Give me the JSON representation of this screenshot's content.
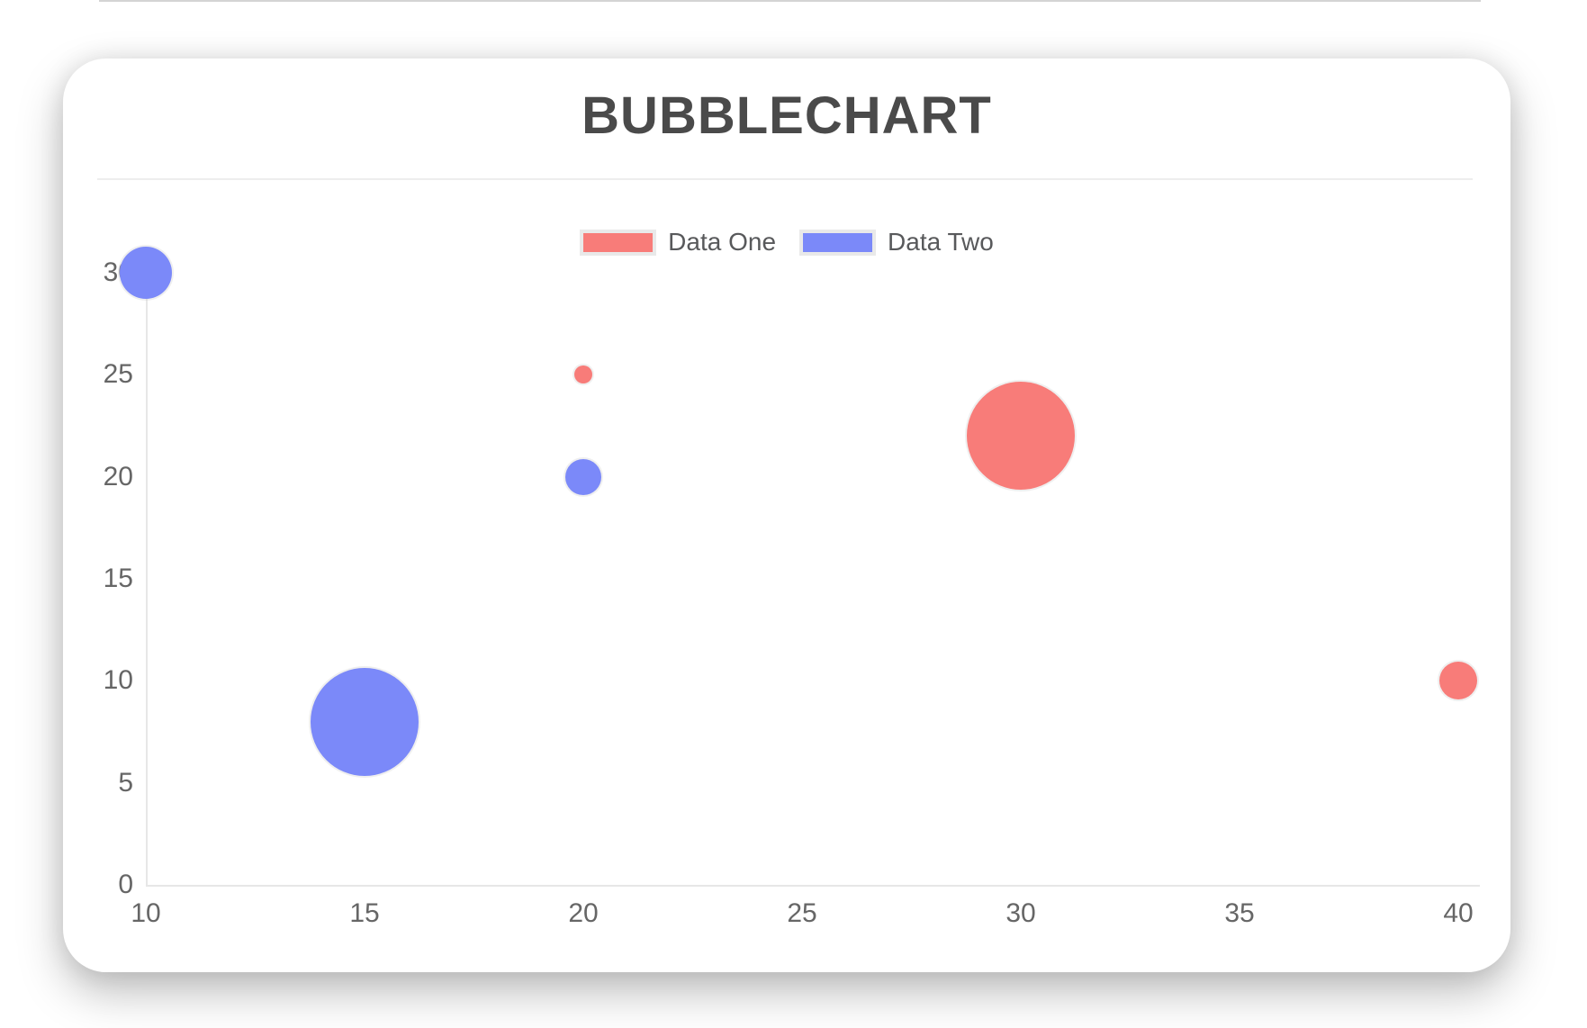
{
  "page": {
    "background": "#ffffff",
    "top_rule_color": "#d4d4d4"
  },
  "card": {
    "title": "BUBBLECHART",
    "title_color": "#4a4a4a",
    "background": "#ffffff"
  },
  "chart_data": {
    "type": "scatter",
    "subtype": "bubble",
    "title": "BUBBLECHART",
    "xlabel": "",
    "ylabel": "",
    "xlim": [
      10,
      40
    ],
    "ylim": [
      0,
      30
    ],
    "x_ticks": [
      10,
      15,
      20,
      25,
      30,
      35,
      40
    ],
    "y_ticks": [
      0,
      5,
      10,
      15,
      20,
      25,
      30
    ],
    "grid": false,
    "legend_position": "top-center",
    "axis_color": "#e7e7e7",
    "tick_color": "#666666",
    "r_unit": "px",
    "series": [
      {
        "name": "Data One",
        "color": "#f87c79",
        "points": [
          {
            "x": 20,
            "y": 25,
            "r": 10
          },
          {
            "x": 30,
            "y": 22,
            "r": 60
          },
          {
            "x": 40,
            "y": 10,
            "r": 21
          }
        ]
      },
      {
        "name": "Data Two",
        "color": "#7b89f9",
        "points": [
          {
            "x": 10,
            "y": 30,
            "r": 29
          },
          {
            "x": 20,
            "y": 20,
            "r": 20
          },
          {
            "x": 15,
            "y": 8,
            "r": 60
          }
        ]
      }
    ]
  }
}
